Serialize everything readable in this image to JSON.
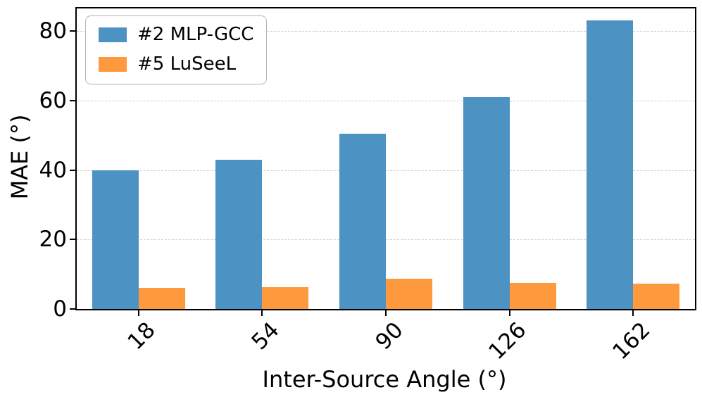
{
  "chart_data": {
    "type": "bar",
    "title": "",
    "xlabel": "Inter-Source Angle (°)",
    "ylabel": "MAE (°)",
    "categories": [
      "18",
      "54",
      "90",
      "126",
      "162"
    ],
    "series": [
      {
        "name": "#2 MLP-GCC",
        "color": "#4C92C3",
        "values": [
          40,
          43,
          50.5,
          61,
          83
        ]
      },
      {
        "name": "#5 LuSeeL",
        "color": "#FF993E",
        "values": [
          6,
          6.3,
          8.8,
          7.5,
          7.3
        ]
      }
    ],
    "yticks": [
      0,
      20,
      40,
      60,
      80
    ],
    "ylim": [
      0,
      86.5
    ],
    "grid": true,
    "legend_position": "upper left"
  }
}
